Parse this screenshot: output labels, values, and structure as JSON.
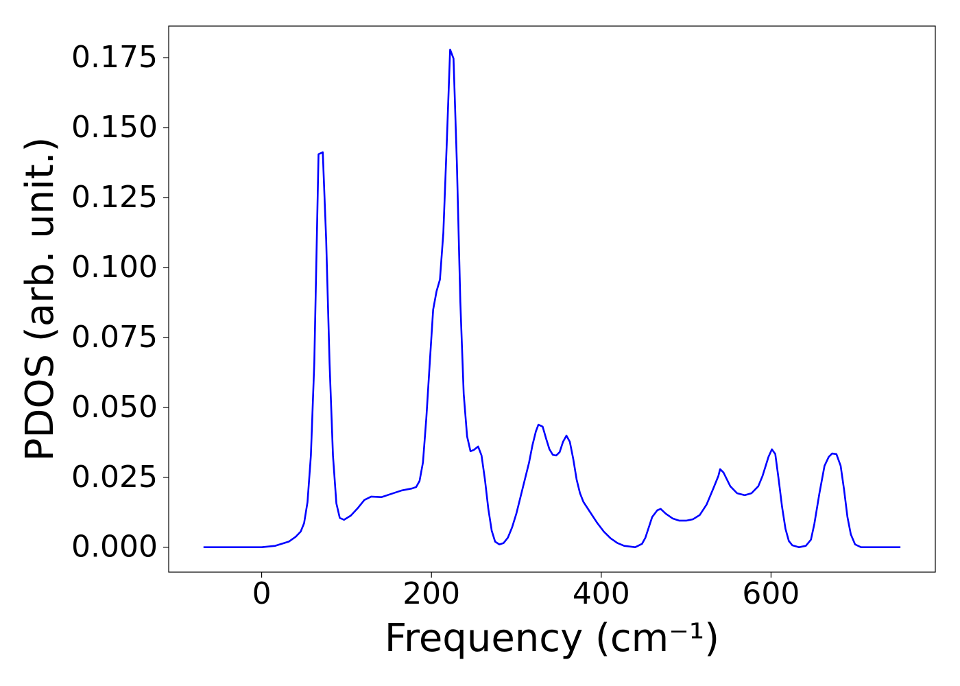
{
  "chart_data": {
    "type": "line",
    "xlabel": "Frequency (cm⁻¹)",
    "ylabel": "PDOS (arb. unit.)",
    "x": [
      -68.5,
      0,
      16,
      32,
      40,
      46,
      50,
      54,
      58,
      62,
      67,
      72,
      76,
      80,
      84,
      88,
      92,
      97,
      105,
      113,
      121,
      129,
      141,
      153,
      165,
      177,
      182,
      186,
      190,
      194,
      198,
      202,
      206,
      210,
      214,
      218,
      222,
      226,
      230,
      234,
      238,
      242,
      246,
      250,
      255,
      259,
      263,
      267,
      271,
      275,
      280,
      285,
      290,
      295,
      300,
      305,
      310,
      315,
      319,
      323,
      326,
      331,
      335,
      339,
      343,
      347,
      351,
      355,
      359,
      363,
      367,
      371,
      375,
      379,
      387,
      395,
      403,
      411,
      419,
      427,
      440,
      448,
      452,
      456,
      460,
      466,
      470,
      476,
      484,
      492,
      500,
      508,
      516,
      524,
      532,
      538,
      540,
      544,
      552,
      560,
      569,
      577,
      585,
      590,
      597,
      601,
      605,
      609,
      613,
      617,
      621,
      625,
      633,
      641,
      647,
      651,
      657,
      663,
      668,
      672,
      677,
      682,
      686,
      690,
      694,
      699,
      706,
      752.4
    ],
    "series": [
      {
        "color": "#0000ff",
        "values": [
          0,
          0,
          0.0005,
          0.002,
          0.0037,
          0.0056,
          0.0086,
          0.0161,
          0.0328,
          0.0658,
          0.1405,
          0.1412,
          0.1099,
          0.0658,
          0.0328,
          0.0157,
          0.0105,
          0.0098,
          0.0113,
          0.0139,
          0.0169,
          0.0181,
          0.0179,
          0.0191,
          0.0203,
          0.021,
          0.0215,
          0.0237,
          0.0303,
          0.0463,
          0.0658,
          0.0849,
          0.0915,
          0.0957,
          0.1123,
          0.1441,
          0.1779,
          0.1747,
          0.1368,
          0.0879,
          0.0548,
          0.0396,
          0.0343,
          0.0348,
          0.036,
          0.0328,
          0.0242,
          0.0137,
          0.0059,
          0.002,
          0.001,
          0.0015,
          0.0034,
          0.0071,
          0.012,
          0.0181,
          0.0242,
          0.0303,
          0.0365,
          0.0414,
          0.0438,
          0.0431,
          0.0389,
          0.035,
          0.033,
          0.0328,
          0.034,
          0.0377,
          0.0399,
          0.0377,
          0.0316,
          0.0242,
          0.0193,
          0.0162,
          0.0125,
          0.0088,
          0.0056,
          0.0032,
          0.0015,
          0.0005,
          0,
          0.0012,
          0.0034,
          0.0071,
          0.0108,
          0.0132,
          0.0137,
          0.012,
          0.0103,
          0.0095,
          0.0095,
          0.01,
          0.0115,
          0.0152,
          0.021,
          0.0255,
          0.0279,
          0.0267,
          0.0218,
          0.0193,
          0.0186,
          0.0193,
          0.0218,
          0.0255,
          0.0323,
          0.035,
          0.0333,
          0.0242,
          0.0144,
          0.0066,
          0.0022,
          0.0007,
          0,
          0.0005,
          0.0027,
          0.0083,
          0.0193,
          0.0291,
          0.0323,
          0.0335,
          0.0333,
          0.0291,
          0.0206,
          0.0108,
          0.0046,
          0.001,
          0,
          0
        ]
      }
    ],
    "xlim": [
      -109.5,
      793.5
    ],
    "ylim": [
      -0.0089,
      0.1863
    ],
    "xticks": [
      0,
      200,
      400,
      600
    ],
    "yticks": [
      {
        "value": 0,
        "label": "0.000"
      },
      {
        "value": 0.025,
        "label": "0.025"
      },
      {
        "value": 0.05,
        "label": "0.050"
      },
      {
        "value": 0.075,
        "label": "0.075"
      },
      {
        "value": 0.1,
        "label": "0.100"
      },
      {
        "value": 0.125,
        "label": "0.125"
      },
      {
        "value": 0.15,
        "label": "0.150"
      },
      {
        "value": 0.175,
        "label": "0.175"
      }
    ],
    "grid": false
  }
}
